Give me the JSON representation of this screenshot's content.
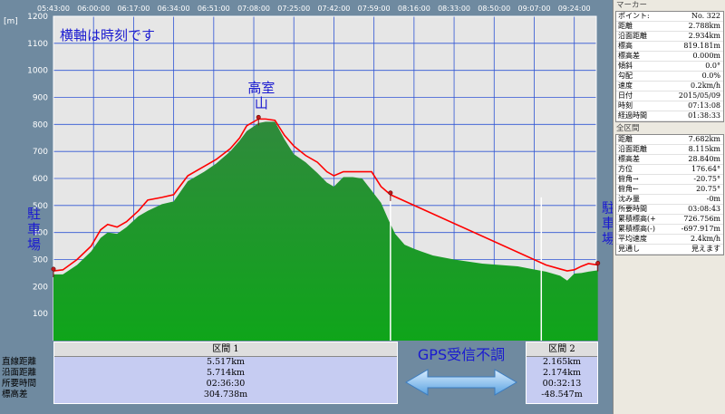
{
  "colors": {
    "plot_bg": "#e6e6e6",
    "grid": "#2f55d4",
    "terrain_top": "#2f8a3c",
    "terrain_bottom": "#0fa51a",
    "route": "#ff0000",
    "annotation": "#1a1ad0"
  },
  "chart_data": {
    "type": "area",
    "title": "横軸は時刻です",
    "ylabel": "[m]",
    "ylim": [
      0,
      1200
    ],
    "yticks": [
      "1200",
      "1100",
      "1000",
      "900",
      "800",
      "700",
      "600",
      "500",
      "400",
      "300",
      "200",
      "100"
    ],
    "xticks": [
      "05:43:00",
      "06:00:00",
      "06:17:00",
      "06:34:00",
      "06:51:00",
      "07:08:00",
      "07:25:00",
      "07:42:00",
      "07:59:00",
      "08:16:00",
      "08:33:00",
      "08:50:00",
      "09:07:00",
      "09:24:00"
    ],
    "grid": true,
    "series": [
      {
        "kind": "terrain",
        "x": [
          "05:43",
          "05:47",
          "05:53",
          "05:59",
          "06:03",
          "06:06",
          "06:10",
          "06:14",
          "06:19",
          "06:23",
          "06:29",
          "06:34",
          "06:40",
          "06:47",
          "06:52",
          "06:58",
          "07:02",
          "07:05",
          "07:10",
          "07:13",
          "07:17",
          "07:21",
          "07:25",
          "07:30",
          "07:35",
          "07:39",
          "07:42",
          "07:46",
          "07:50",
          "07:54",
          "07:58",
          "08:02",
          "08:05",
          "08:08",
          "08:12",
          "08:16",
          "08:19",
          "08:24",
          "08:33",
          "08:45",
          "09:00",
          "09:06",
          "09:12",
          "09:18",
          "09:21",
          "09:24",
          "09:27",
          "09:30",
          "09:34"
        ],
        "values": [
          245,
          245,
          280,
          330,
          380,
          400,
          395,
          420,
          460,
          480,
          505,
          515,
          590,
          625,
          655,
          700,
          740,
          775,
          805,
          810,
          810,
          745,
          690,
          660,
          620,
          585,
          570,
          605,
          605,
          600,
          555,
          510,
          450,
          395,
          355,
          340,
          330,
          315,
          300,
          285,
          275,
          265,
          255,
          240,
          222,
          248,
          250,
          255,
          260
        ]
      },
      {
        "kind": "route",
        "x": [
          "05:43",
          "05:47",
          "05:53",
          "05:59",
          "06:03",
          "06:06",
          "06:10",
          "06:14",
          "06:19",
          "06:23",
          "06:29",
          "06:34",
          "06:40",
          "06:47",
          "06:52",
          "06:58",
          "07:02",
          "07:05",
          "07:10",
          "07:13",
          "07:17",
          "07:21",
          "07:25",
          "07:30",
          "07:35",
          "07:39",
          "07:42",
          "07:46",
          "07:50",
          "07:54",
          "07:58",
          "08:02",
          "08:06",
          "09:12",
          "09:18",
          "09:21",
          "09:24",
          "09:27",
          "09:30",
          "09:34"
        ],
        "values": [
          258,
          262,
          300,
          350,
          410,
          430,
          420,
          440,
          480,
          520,
          530,
          540,
          610,
          645,
          670,
          710,
          750,
          795,
          820,
          820,
          815,
          760,
          720,
          685,
          660,
          625,
          610,
          625,
          625,
          625,
          625,
          570,
          540,
          280,
          265,
          258,
          262,
          275,
          285,
          280
        ]
      }
    ],
    "annotations": [
      {
        "label": "高室山",
        "x": "07:12",
        "y": 818
      },
      {
        "label": "駐車場",
        "x": "05:43",
        "y": 258
      },
      {
        "label": "駐車場",
        "x": "09:34",
        "y": 280
      }
    ],
    "dividers": [
      "08:06",
      "09:10"
    ]
  },
  "bottom_labels": [
    "直線距離",
    "沿面距離",
    "所要時間",
    "標高差"
  ],
  "sections": [
    {
      "title": "区間 1",
      "rows": [
        "5.517km",
        "5.714km",
        "02:36:30",
        "304.738m"
      ]
    },
    {
      "title": "区間 2",
      "rows": [
        "2.165km",
        "2.174km",
        "00:32:13",
        "-48.547m"
      ]
    }
  ],
  "gps_note": "GPS受信不調",
  "marker_panel": {
    "title": "マーカー",
    "rows": [
      {
        "k": "ポイント:",
        "v": "No. 322"
      },
      {
        "k": "距離",
        "v": "2.788km"
      },
      {
        "k": "沿面距離",
        "v": "2.934km"
      },
      {
        "k": "標高",
        "v": "819.181m"
      },
      {
        "k": "標高差",
        "v": "0.000m"
      },
      {
        "k": "傾斜",
        "v": "0.0°"
      },
      {
        "k": "勾配",
        "v": "0.0%"
      },
      {
        "k": "速度",
        "v": "0.2km/h"
      },
      {
        "k": "日付",
        "v": "2015/05/09"
      },
      {
        "k": "時刻",
        "v": "07:13:08"
      },
      {
        "k": "経過時間",
        "v": "01:38:33"
      }
    ]
  },
  "total_panel": {
    "title": "全区間",
    "rows": [
      {
        "k": "距離",
        "v": "7.682km"
      },
      {
        "k": "沿面距離",
        "v": "8.115km"
      },
      {
        "k": "標高差",
        "v": "28.840m"
      },
      {
        "k": "方位",
        "v": "176.64°"
      },
      {
        "k": "俯角→",
        "v": "-20.75°"
      },
      {
        "k": "俯角←",
        "v": "20.75°"
      },
      {
        "k": "沈み量",
        "v": "-0m"
      },
      {
        "k": "所要時間",
        "v": "03:08:43"
      },
      {
        "k": "累積標高(+)",
        "v": "726.756m"
      },
      {
        "k": "累積標高(-)",
        "v": "-697.917m"
      },
      {
        "k": "平均速度",
        "v": "2.4km/h"
      },
      {
        "k": "見通し",
        "v": "見えます"
      }
    ]
  }
}
